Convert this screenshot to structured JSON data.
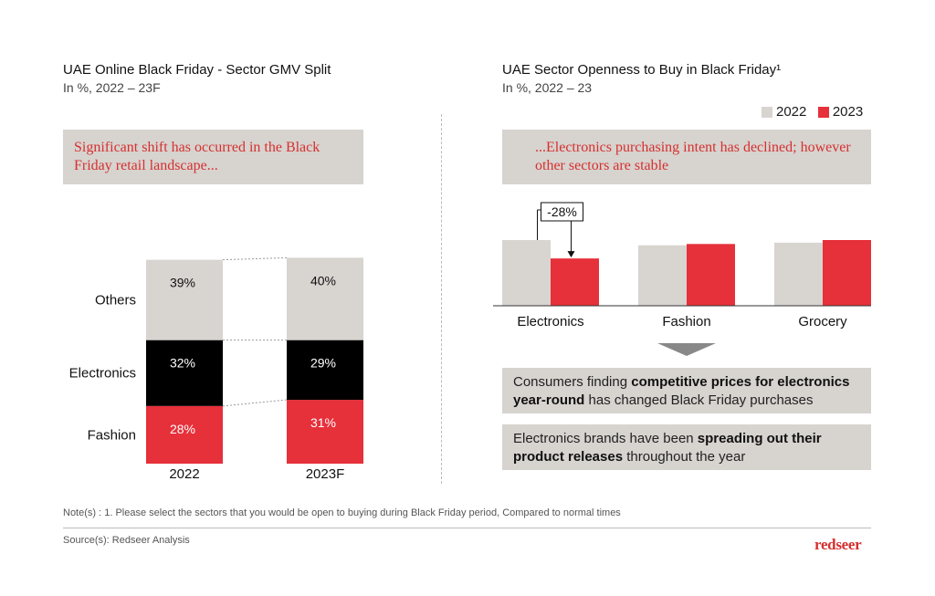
{
  "left": {
    "title": "UAE Online Black Friday - Sector GMV Split",
    "subtitle": "In %, 2022 – 23F",
    "callout": "Significant shift has occurred in the Black Friday retail landscape..."
  },
  "right": {
    "title": "UAE Sector Openness to Buy in Black Friday¹",
    "subtitle": "In %, 2022 – 23",
    "callout": "...Electronics purchasing intent has declined; however other sectors are stable",
    "annotation": "-28%",
    "info1_pre": "Consumers finding ",
    "info1_bold": "competitive prices for electronics year-round",
    "info1_post": " has changed Black Friday purchases",
    "info2_pre": "Electronics brands have been ",
    "info2_bold": "spreading out their product releases",
    "info2_post": " throughout the year"
  },
  "colors": {
    "gray": "#d8d4d0",
    "red": "#e6303a",
    "black": "#000000"
  },
  "chart_data": [
    {
      "type": "bar",
      "stacked": true,
      "title": "UAE Online Black Friday - Sector GMV Split",
      "subtitle": "In %, 2022 – 23F",
      "categories": [
        "2022",
        "2023F"
      ],
      "series": [
        {
          "name": "Fashion",
          "values": [
            28,
            31
          ],
          "labels": [
            "28%",
            "31%"
          ],
          "color": "#e6303a"
        },
        {
          "name": "Electronics",
          "values": [
            32,
            29
          ],
          "labels": [
            "32%",
            "29%"
          ],
          "color": "#000000"
        },
        {
          "name": "Others",
          "values": [
            39,
            40
          ],
          "labels": [
            "39%",
            "40%"
          ],
          "color": "#d8d4d0"
        }
      ]
    },
    {
      "type": "bar",
      "title": "UAE Sector Openness to Buy in Black Friday¹",
      "subtitle": "In %, 2022 – 23",
      "categories": [
        "Electronics",
        "Fashion",
        "Grocery"
      ],
      "legend": "top-right",
      "series": [
        {
          "name": "2022",
          "values": [
            100,
            92,
            96
          ],
          "color": "#d8d4d0"
        },
        {
          "name": "2023",
          "values": [
            72,
            94,
            100
          ],
          "color": "#e6303a"
        }
      ],
      "annotation": "-28%"
    }
  ],
  "footer": {
    "note": "Note(s) : 1. Please select the sectors that you would be open to buying during Black Friday period, Compared to normal times",
    "source": "Source(s): Redseer Analysis",
    "logo": "redseer"
  }
}
